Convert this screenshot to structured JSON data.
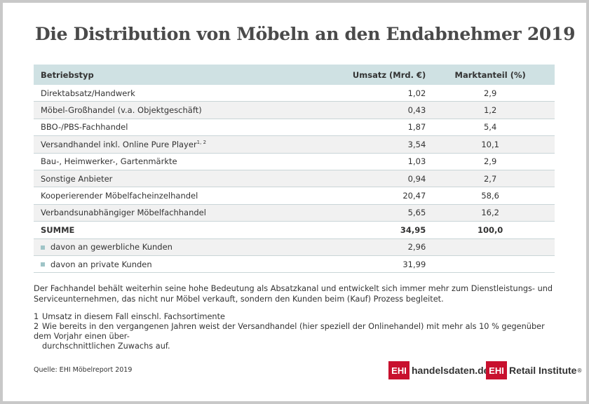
{
  "title": "Die Distribution von Möbeln an den Endabnehmer 2019",
  "chart_data": {
    "type": "table",
    "columns": [
      "Betriebstyp",
      "Umsatz (Mrd. €)",
      "Marktanteil (%)"
    ],
    "rows": [
      {
        "label": "Direktabsatz/Handwerk",
        "umsatz": "1,02",
        "anteil": "2,9"
      },
      {
        "label": "Möbel-Großhandel (v.a. Objektgeschäft)",
        "umsatz": "0,43",
        "anteil": "1,2"
      },
      {
        "label": "BBO-/PBS-Fachhandel",
        "umsatz": "1,87",
        "anteil": "5,4"
      },
      {
        "label": "Versandhandel inkl. Online Pure Player",
        "sup": "1, 2",
        "umsatz": "3,54",
        "anteil": "10,1"
      },
      {
        "label": "Bau-, Heimwerker-, Gartenmärkte",
        "umsatz": "1,03",
        "anteil": "2,9"
      },
      {
        "label": "Sonstige Anbieter",
        "umsatz": "0,94",
        "anteil": "2,7"
      },
      {
        "label": "Kooperierender Möbelfacheinzelhandel",
        "umsatz": "20,47",
        "anteil": "58,6"
      },
      {
        "label": "Verbandsunabhängiger Möbelfachhandel",
        "umsatz": "5,65",
        "anteil": "16,2"
      },
      {
        "label": "SUMME",
        "umsatz": "34,95",
        "anteil": "100,0"
      },
      {
        "label": "davon an gewerbliche Kunden",
        "umsatz": "2,96",
        "anteil": ""
      },
      {
        "label": "davon an private Kunden",
        "umsatz": "31,99",
        "anteil": ""
      }
    ]
  },
  "note": "Der Fachhandel behält weiterhin seine hohe Bedeutung als Absatzkanal und entwickelt sich immer mehr zum Dienstleistungs- und Serviceunternehmen, das nicht nur Möbel verkauft, sondern den Kunden beim (Kauf) Prozess begleitet.",
  "footnotes": {
    "f1_mark": "1",
    "f1": "Umsatz in diesem Fall einschl. Fachsortimente",
    "f2_mark": "2",
    "f2a": "Wie bereits in den vergangenen Jahren weist der Versandhandel (hier speziell der Onlinehandel) mit mehr als 10 % gegenüber dem Vorjahr einen über-",
    "f2b": "durchschnittlichen Zuwachs auf."
  },
  "source": "Quelle: EHI Möbelreport 2019",
  "logos": {
    "ehi_badge": "EHI",
    "logo1_text": "handelsdaten.de",
    "logo2_text": "Retail Institute",
    "logo2_reg": "®"
  },
  "colors": {
    "header_bg": "#cfe1e3",
    "bullet": "#9fc4c7",
    "logo_red": "#c8102e"
  }
}
